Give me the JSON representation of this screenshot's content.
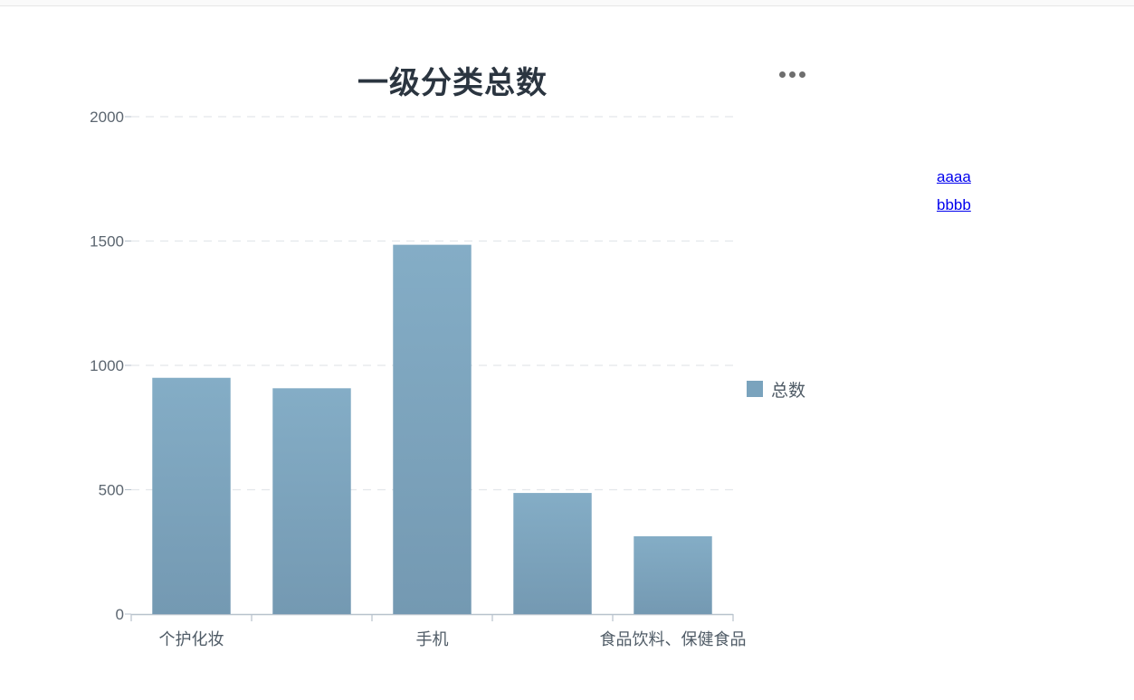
{
  "links": [
    "aaaa",
    "bbbb"
  ],
  "chart_data": {
    "type": "bar",
    "title": "一级分类总数",
    "categories": [
      "个护化妆",
      "",
      "手机",
      "",
      "食品饮料、保健食品"
    ],
    "series": [
      {
        "name": "总数",
        "values": [
          950,
          908,
          1485,
          487,
          313
        ]
      }
    ],
    "ylim": [
      0,
      2000
    ],
    "yticks": [
      0,
      500,
      1000,
      1500,
      2000
    ],
    "xlabel": "",
    "ylabel": "",
    "legend_position": "right",
    "grid": true,
    "colors": {
      "bar_top": "#84adc6",
      "bar_bottom": "#7499b2",
      "legend": "#7aa3bd",
      "axis": "#b7c2cc",
      "grid": "#e3e7eb"
    }
  }
}
